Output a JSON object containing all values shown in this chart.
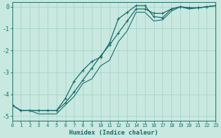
{
  "title": "",
  "xlabel": "Humidex (Indice chaleur)",
  "bg_color": "#c8e8e0",
  "line_color": "#1a6b6b",
  "grid_color": "#a8d4cc",
  "xlim": [
    0,
    23
  ],
  "ylim": [
    -5.2,
    0.2
  ],
  "xticks": [
    0,
    1,
    2,
    3,
    4,
    5,
    6,
    7,
    8,
    9,
    10,
    11,
    12,
    13,
    14,
    15,
    16,
    17,
    18,
    19,
    20,
    21,
    22,
    23
  ],
  "yticks": [
    0,
    -1,
    -2,
    -3,
    -4,
    -5
  ],
  "line1_x": [
    0,
    1,
    2,
    3,
    4,
    5,
    6,
    7,
    8,
    9,
    10,
    11,
    12,
    13,
    14,
    15,
    16,
    17,
    18,
    19,
    20,
    21,
    22,
    23
  ],
  "line1_y": [
    -4.5,
    -4.75,
    -4.75,
    -4.75,
    -4.75,
    -4.75,
    -4.4,
    -3.9,
    -3.35,
    -2.8,
    -2.25,
    -1.75,
    -1.2,
    -0.65,
    -0.1,
    -0.1,
    -0.3,
    -0.3,
    -0.1,
    0.0,
    -0.05,
    -0.05,
    0.0,
    0.05
  ],
  "line2_x": [
    0,
    1,
    2,
    3,
    4,
    5,
    6,
    7,
    8,
    9,
    10,
    11,
    12,
    13,
    14,
    15,
    16,
    17,
    18,
    19,
    20,
    21,
    22,
    23
  ],
  "line2_y": [
    -4.5,
    -4.75,
    -4.75,
    -4.75,
    -4.75,
    -4.75,
    -4.2,
    -3.4,
    -2.9,
    -2.5,
    -2.3,
    -1.65,
    -0.55,
    -0.25,
    0.05,
    0.05,
    -0.45,
    -0.5,
    -0.1,
    0.0,
    -0.05,
    -0.05,
    0.0,
    0.05
  ],
  "line3_x": [
    0,
    1,
    2,
    3,
    4,
    5,
    6,
    7,
    8,
    9,
    10,
    11,
    12,
    13,
    14,
    15,
    16,
    17,
    18,
    19,
    20,
    21,
    22,
    23
  ],
  "line3_y": [
    -4.5,
    -4.75,
    -4.75,
    -4.9,
    -4.9,
    -4.9,
    -4.5,
    -4.1,
    -3.5,
    -3.3,
    -2.7,
    -2.45,
    -1.6,
    -1.1,
    -0.25,
    -0.25,
    -0.65,
    -0.6,
    -0.2,
    0.0,
    -0.1,
    -0.05,
    0.0,
    0.05
  ]
}
